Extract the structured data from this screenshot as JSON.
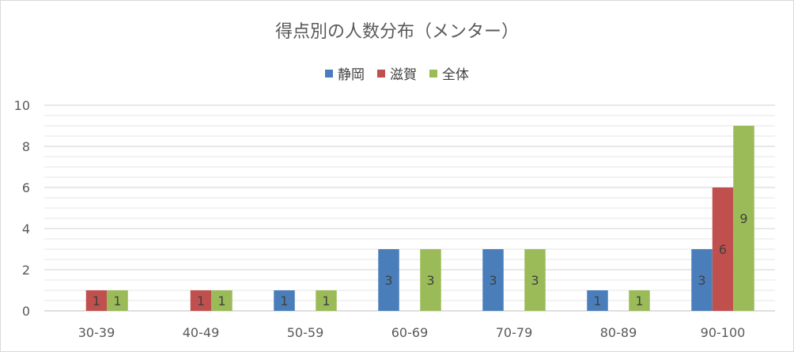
{
  "chart_data": {
    "type": "bar",
    "title": "得点別の人数分布（メンター）",
    "categories": [
      "30-39",
      "40-49",
      "50-59",
      "60-69",
      "70-79",
      "80-89",
      "90-100"
    ],
    "series": [
      {
        "name": "静岡",
        "color": "#4a7ebb",
        "values": [
          0,
          0,
          1,
          3,
          3,
          1,
          3
        ]
      },
      {
        "name": "滋賀",
        "color": "#c0504d",
        "values": [
          1,
          1,
          0,
          0,
          0,
          0,
          6
        ]
      },
      {
        "name": "全体",
        "color": "#9bbb59",
        "values": [
          1,
          1,
          1,
          3,
          3,
          1,
          9
        ]
      }
    ],
    "ylim": [
      0,
      10
    ],
    "yticks": [
      0,
      2,
      4,
      6,
      8,
      10
    ],
    "minor_gridlines": true,
    "legend_position": "top",
    "data_labels": true
  }
}
